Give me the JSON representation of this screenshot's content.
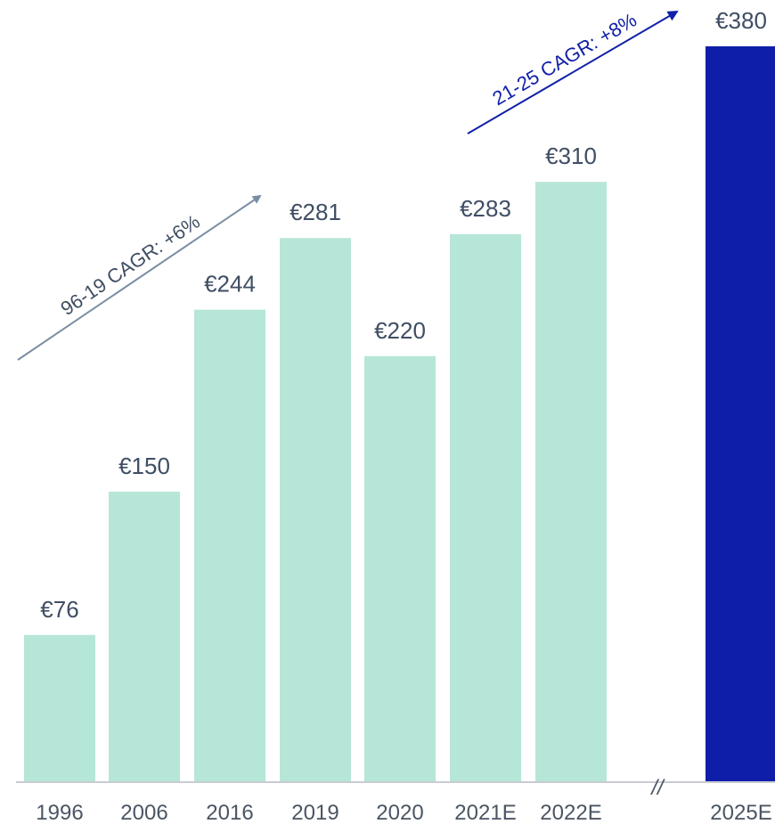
{
  "chart_data": {
    "type": "bar",
    "categories": [
      "1996",
      "2006",
      "2016",
      "2019",
      "2020",
      "2021E",
      "2022E",
      "2025E"
    ],
    "values": [
      76,
      150,
      244,
      281,
      220,
      283,
      310,
      380
    ],
    "value_labels": [
      "€76",
      "€150",
      "€244",
      "€281",
      "€220",
      "€283",
      "€310",
      "€380"
    ],
    "title": "",
    "xlabel": "",
    "ylabel": "",
    "ylim": [
      0,
      380
    ],
    "grid": false,
    "legend": "none",
    "axis_break_marker": "//",
    "annotations": [
      {
        "text": "96-19 CAGR: +6%",
        "from_category": "1996",
        "to_category": "2019",
        "color": "#7b8ea3"
      },
      {
        "text": "21-25 CAGR: +8%",
        "from_category": "2021E",
        "to_category": "2025E",
        "color": "#1120a8"
      }
    ],
    "colors": {
      "bar": "#b6e6d8",
      "highlight_bar": "#0f1ea8",
      "axis": "#c8ccd2",
      "value_label": "#3f4e63",
      "tick_label": "#4b5563"
    }
  }
}
